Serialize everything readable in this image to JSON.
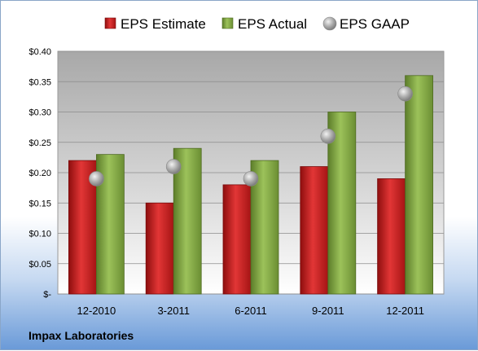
{
  "chart_data": {
    "type": "bar",
    "categories": [
      "12-2010",
      "3-2011",
      "6-2011",
      "9-2011",
      "12-2011"
    ],
    "series": [
      {
        "name": "EPS Estimate",
        "values": [
          0.22,
          0.15,
          0.18,
          0.21,
          0.19
        ],
        "color": "#cc1f1f",
        "kind": "bar"
      },
      {
        "name": "EPS Actual",
        "values": [
          0.23,
          0.24,
          0.22,
          0.3,
          0.36
        ],
        "color": "#8ab04a",
        "kind": "bar"
      },
      {
        "name": "EPS GAAP",
        "values": [
          0.19,
          0.21,
          0.19,
          0.26,
          0.33
        ],
        "color": "#a9a9a9",
        "kind": "marker"
      }
    ],
    "ylim": [
      0,
      0.4
    ],
    "yticks": [
      0,
      0.05,
      0.1,
      0.15,
      0.2,
      0.25,
      0.3,
      0.35,
      0.4
    ],
    "ytick_labels": [
      "$-",
      "$0.05",
      "$0.10",
      "$0.15",
      "$0.20",
      "$0.25",
      "$0.30",
      "$0.35",
      "$0.40"
    ],
    "legend": {
      "position": "top"
    },
    "grid": true,
    "footer": "Impax Laboratories"
  }
}
